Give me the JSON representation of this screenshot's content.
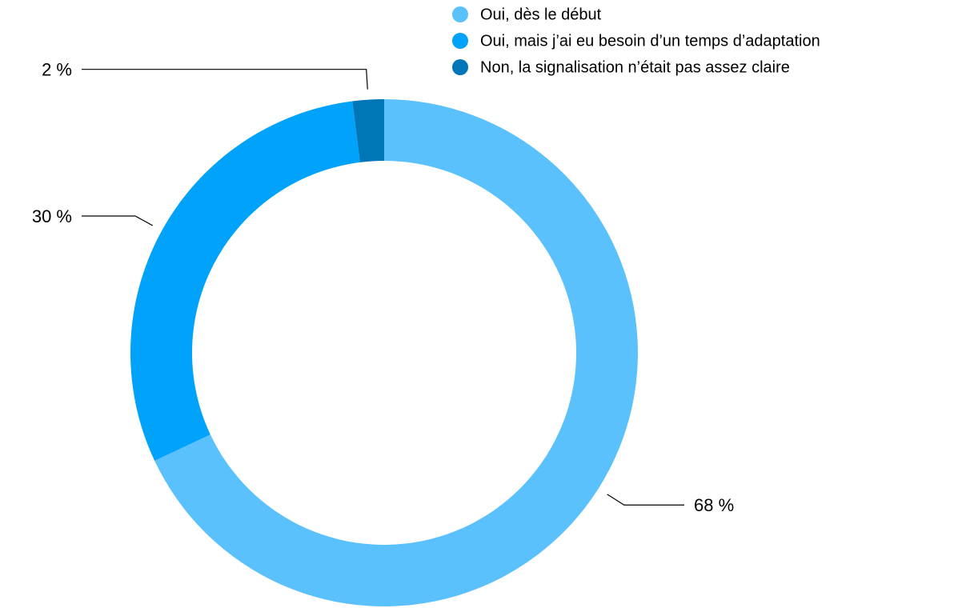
{
  "chart_data": {
    "type": "donut",
    "categories": [
      "Oui, dès le début",
      "Oui, mais j’ai eu besoin d’un temps d’adaptation",
      "Non, la signalisation n’était pas assez claire"
    ],
    "values": [
      68,
      30,
      2
    ],
    "value_labels": [
      "68 %",
      "30 %",
      "2 %"
    ],
    "colors": [
      "#5ac1fd",
      "#00a2fa",
      "#0076b7"
    ]
  }
}
